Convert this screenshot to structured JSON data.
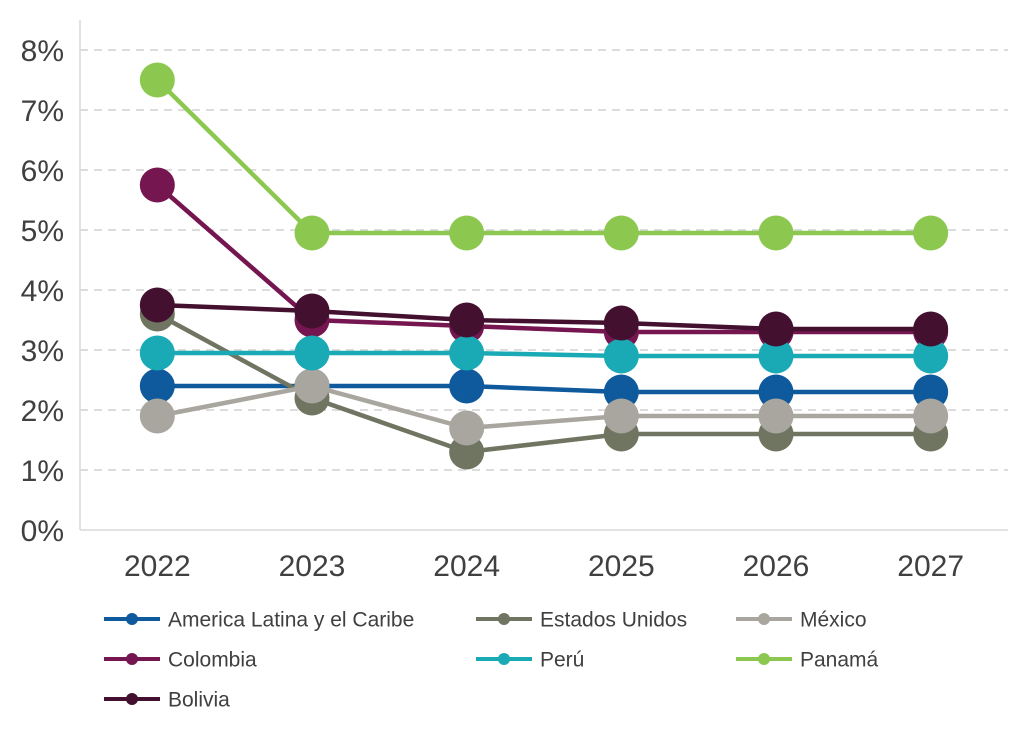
{
  "chart_data": {
    "type": "line",
    "x": [
      "2022",
      "2023",
      "2024",
      "2025",
      "2026",
      "2027"
    ],
    "ylim": [
      0,
      8
    ],
    "y_ticks": [
      0,
      1,
      2,
      3,
      4,
      5,
      6,
      7,
      8
    ],
    "y_tick_labels": [
      "0%",
      "1%",
      "2%",
      "3%",
      "4%",
      "5%",
      "6%",
      "7%",
      "8%"
    ],
    "y_unit": "%",
    "grid": "horizontal dashed",
    "legend_position": "bottom",
    "series": [
      {
        "name": "America Latina y el Caribe",
        "color": "#0f5a9c",
        "values": [
          2.4,
          2.4,
          2.4,
          2.3,
          2.3,
          2.3
        ]
      },
      {
        "name": "Estados Unidos",
        "color": "#707562",
        "values": [
          3.6,
          2.2,
          1.3,
          1.6,
          1.6,
          1.6
        ]
      },
      {
        "name": "México",
        "color": "#a8a69e",
        "values": [
          1.9,
          2.4,
          1.7,
          1.9,
          1.9,
          1.9
        ]
      },
      {
        "name": "Colombia",
        "color": "#751651",
        "values": [
          5.75,
          3.5,
          3.4,
          3.3,
          3.3,
          3.3
        ]
      },
      {
        "name": "Perú",
        "color": "#1aaab6",
        "values": [
          2.95,
          2.95,
          2.95,
          2.9,
          2.9,
          2.9
        ]
      },
      {
        "name": "Panamá",
        "color": "#8cc850",
        "values": [
          7.5,
          4.95,
          4.95,
          4.95,
          4.95,
          4.95
        ]
      },
      {
        "name": "Bolivia",
        "color": "#43102f",
        "values": [
          3.75,
          3.65,
          3.5,
          3.45,
          3.35,
          3.35
        ]
      }
    ]
  }
}
